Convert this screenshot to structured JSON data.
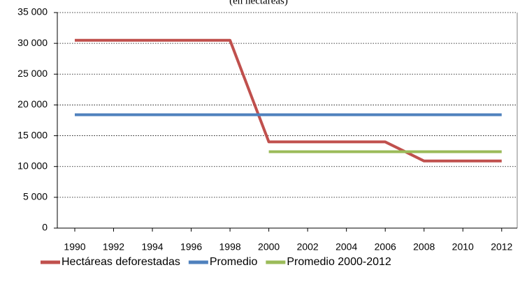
{
  "chart_data": {
    "type": "line",
    "subtitle": "(en hectáreas)",
    "x": [
      1990,
      1991,
      1992,
      1993,
      1994,
      1995,
      1996,
      1997,
      1998,
      1999,
      2000,
      2001,
      2002,
      2003,
      2004,
      2005,
      2006,
      2007,
      2008,
      2009,
      2010,
      2011,
      2012
    ],
    "series": [
      {
        "name": "Hectáreas deforestadas",
        "color": "#c0504d",
        "values": [
          30500,
          30500,
          30500,
          30500,
          30500,
          30500,
          30500,
          30500,
          30500,
          22250,
          14000,
          14000,
          14000,
          14000,
          14000,
          14000,
          14000,
          12450,
          10900,
          10900,
          10900,
          10900,
          10900
        ]
      },
      {
        "name": "Promedio",
        "color": "#4f81bd",
        "values": [
          18400,
          18400,
          18400,
          18400,
          18400,
          18400,
          18400,
          18400,
          18400,
          18400,
          18400,
          18400,
          18400,
          18400,
          18400,
          18400,
          18400,
          18400,
          18400,
          18400,
          18400,
          18400,
          18400
        ]
      },
      {
        "name": "Promedio 2000-2012",
        "color": "#9bbb59",
        "values": [
          null,
          null,
          null,
          null,
          null,
          null,
          null,
          null,
          null,
          null,
          12400,
          12400,
          12400,
          12400,
          12400,
          12400,
          12400,
          12400,
          12400,
          12400,
          12400,
          12400,
          12400
        ]
      }
    ],
    "xlim": [
      1989.1,
      2012.8
    ],
    "xticks": [
      1990,
      1992,
      1994,
      1996,
      1998,
      2000,
      2002,
      2004,
      2006,
      2008,
      2010,
      2012
    ],
    "ylim": [
      0,
      35000
    ],
    "yticks": [
      0,
      {
        "value": 5000,
        "label": "5 000"
      },
      {
        "value": 10000,
        "label": "10 000"
      },
      {
        "value": 15000,
        "label": "15 000"
      },
      {
        "value": 20000,
        "label": "20 000"
      },
      {
        "value": 25000,
        "label": "25 000"
      },
      {
        "value": 30000,
        "label": "30 000"
      },
      {
        "value": 35000,
        "label": "35 000"
      }
    ],
    "grid": true,
    "legend": "bottom"
  }
}
